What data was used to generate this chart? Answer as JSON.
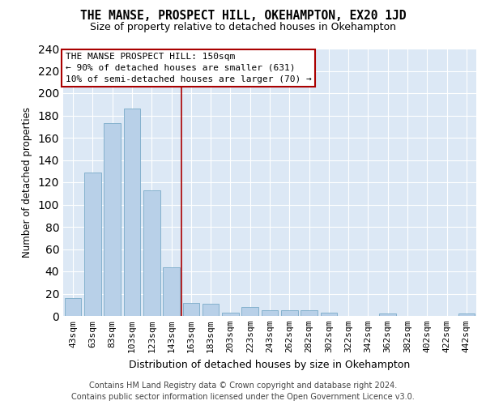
{
  "title": "THE MANSE, PROSPECT HILL, OKEHAMPTON, EX20 1JD",
  "subtitle": "Size of property relative to detached houses in Okehampton",
  "xlabel": "Distribution of detached houses by size in Okehampton",
  "ylabel": "Number of detached properties",
  "footer_line1": "Contains HM Land Registry data © Crown copyright and database right 2024.",
  "footer_line2": "Contains public sector information licensed under the Open Government Licence v3.0.",
  "annotation_line1": "THE MANSE PROSPECT HILL: 150sqm",
  "annotation_line2": "← 90% of detached houses are smaller (631)",
  "annotation_line3": "10% of semi-detached houses are larger (70) →",
  "bar_color": "#b8d0e8",
  "bar_edge_color": "#7aaac8",
  "vline_color": "#aa0000",
  "background_color": "#dce8f5",
  "grid_color": "#ffffff",
  "fig_bg": "#ffffff",
  "categories": [
    "43sqm",
    "63sqm",
    "83sqm",
    "103sqm",
    "123sqm",
    "143sqm",
    "163sqm",
    "183sqm",
    "203sqm",
    "223sqm",
    "243sqm",
    "262sqm",
    "282sqm",
    "302sqm",
    "322sqm",
    "342sqm",
    "362sqm",
    "382sqm",
    "402sqm",
    "422sqm",
    "442sqm"
  ],
  "values": [
    16,
    129,
    173,
    186,
    113,
    44,
    12,
    11,
    3,
    8,
    5,
    5,
    5,
    3,
    0,
    0,
    2,
    0,
    0,
    0,
    2
  ],
  "vline_x": 5.5,
  "ylim": [
    0,
    240
  ],
  "yticks": [
    0,
    20,
    40,
    60,
    80,
    100,
    120,
    140,
    160,
    180,
    200,
    220,
    240
  ],
  "title_fontsize": 10.5,
  "subtitle_fontsize": 9,
  "ylabel_fontsize": 8.5,
  "xlabel_fontsize": 9,
  "tick_fontsize": 8,
  "footer_fontsize": 7,
  "ann_fontsize": 8
}
